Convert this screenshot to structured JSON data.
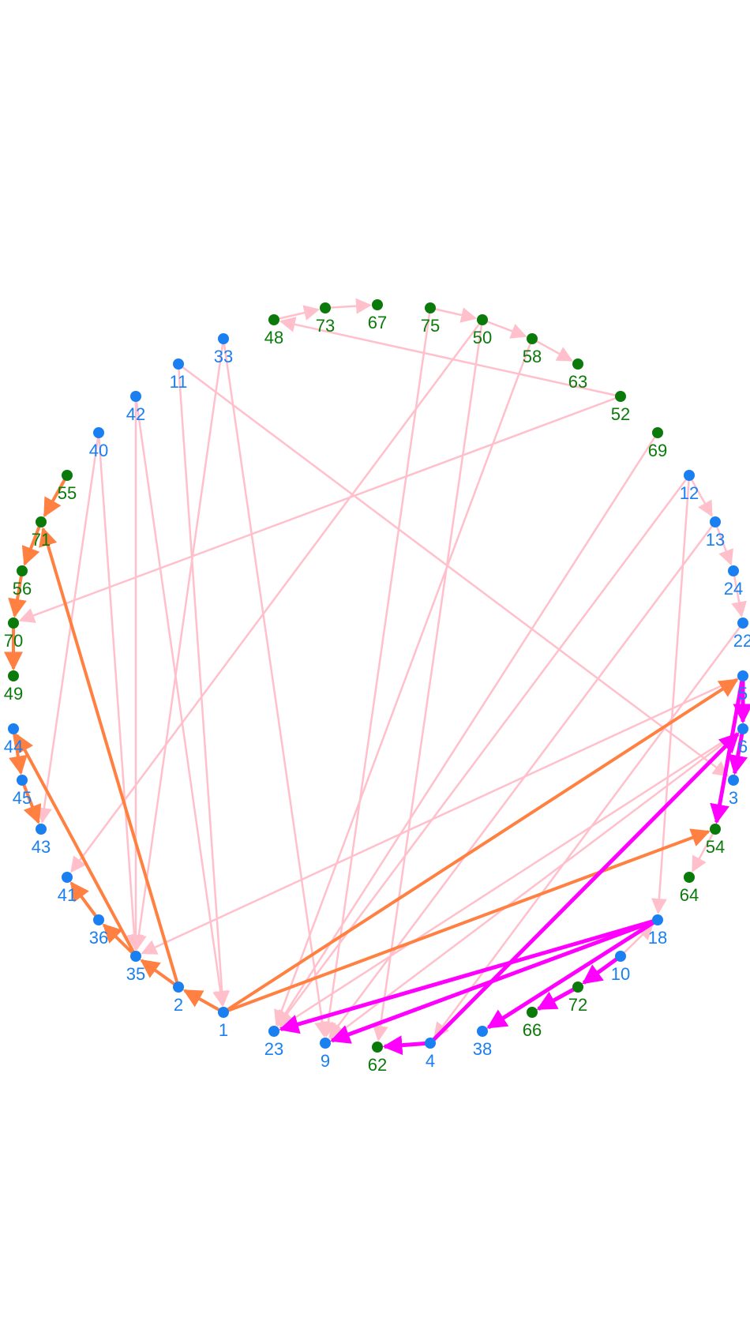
{
  "colors": {
    "blue_node": "#1a7ff0",
    "green_node": "#0a7a0a",
    "edge_pink": "#ffc0cb",
    "edge_orange": "#ff8040",
    "edge_magenta": "#ff00ff",
    "background": "#ffffff"
  },
  "nodes": [
    {
      "id": "1",
      "group": "blue"
    },
    {
      "id": "2",
      "group": "blue"
    },
    {
      "id": "35",
      "group": "blue"
    },
    {
      "id": "36",
      "group": "blue"
    },
    {
      "id": "41",
      "group": "blue"
    },
    {
      "id": "43",
      "group": "blue"
    },
    {
      "id": "45",
      "group": "blue"
    },
    {
      "id": "44",
      "group": "blue"
    },
    {
      "id": "49",
      "group": "green"
    },
    {
      "id": "70",
      "group": "green"
    },
    {
      "id": "56",
      "group": "green"
    },
    {
      "id": "71",
      "group": "green"
    },
    {
      "id": "55",
      "group": "green"
    },
    {
      "id": "40",
      "group": "blue"
    },
    {
      "id": "42",
      "group": "blue"
    },
    {
      "id": "11",
      "group": "blue"
    },
    {
      "id": "33",
      "group": "blue"
    },
    {
      "id": "48",
      "group": "green"
    },
    {
      "id": "73",
      "group": "green"
    },
    {
      "id": "67",
      "group": "green"
    },
    {
      "id": "75",
      "group": "green"
    },
    {
      "id": "50",
      "group": "green"
    },
    {
      "id": "58",
      "group": "green"
    },
    {
      "id": "63",
      "group": "green"
    },
    {
      "id": "52",
      "group": "green"
    },
    {
      "id": "69",
      "group": "green"
    },
    {
      "id": "12",
      "group": "blue"
    },
    {
      "id": "13",
      "group": "blue"
    },
    {
      "id": "24",
      "group": "blue"
    },
    {
      "id": "22",
      "group": "blue"
    },
    {
      "id": "5",
      "group": "blue"
    },
    {
      "id": "6",
      "group": "blue"
    },
    {
      "id": "3",
      "group": "blue"
    },
    {
      "id": "54",
      "group": "green"
    },
    {
      "id": "64",
      "group": "green"
    },
    {
      "id": "18",
      "group": "blue"
    },
    {
      "id": "10",
      "group": "blue"
    },
    {
      "id": "72",
      "group": "green"
    },
    {
      "id": "66",
      "group": "green"
    },
    {
      "id": "38",
      "group": "blue"
    },
    {
      "id": "4",
      "group": "blue"
    },
    {
      "id": "62",
      "group": "green"
    },
    {
      "id": "9",
      "group": "blue"
    },
    {
      "id": "23",
      "group": "blue"
    }
  ],
  "edges": [
    {
      "source": "48",
      "target": "73",
      "style": "pink"
    },
    {
      "source": "73",
      "target": "67",
      "style": "pink"
    },
    {
      "source": "75",
      "target": "50",
      "style": "pink"
    },
    {
      "source": "50",
      "target": "58",
      "style": "pink"
    },
    {
      "source": "58",
      "target": "63",
      "style": "pink"
    },
    {
      "source": "52",
      "target": "48",
      "style": "pink"
    },
    {
      "source": "52",
      "target": "70",
      "style": "pink"
    },
    {
      "source": "50",
      "target": "41",
      "style": "pink"
    },
    {
      "source": "50",
      "target": "62",
      "style": "pink"
    },
    {
      "source": "75",
      "target": "9",
      "style": "pink"
    },
    {
      "source": "58",
      "target": "23",
      "style": "pink"
    },
    {
      "source": "69",
      "target": "23",
      "style": "pink"
    },
    {
      "source": "11",
      "target": "3",
      "style": "pink"
    },
    {
      "source": "11",
      "target": "1",
      "style": "pink"
    },
    {
      "source": "33",
      "target": "35",
      "style": "pink"
    },
    {
      "source": "33",
      "target": "9",
      "style": "pink"
    },
    {
      "source": "42",
      "target": "35",
      "style": "pink"
    },
    {
      "source": "42",
      "target": "1",
      "style": "pink"
    },
    {
      "source": "40",
      "target": "35",
      "style": "pink"
    },
    {
      "source": "40",
      "target": "43",
      "style": "pink"
    },
    {
      "source": "12",
      "target": "13",
      "style": "pink"
    },
    {
      "source": "13",
      "target": "24",
      "style": "pink"
    },
    {
      "source": "24",
      "target": "22",
      "style": "pink"
    },
    {
      "source": "12",
      "target": "23",
      "style": "pink"
    },
    {
      "source": "12",
      "target": "18",
      "style": "pink"
    },
    {
      "source": "13",
      "target": "9",
      "style": "pink"
    },
    {
      "source": "22",
      "target": "4",
      "style": "pink"
    },
    {
      "source": "5",
      "target": "35",
      "style": "pink"
    },
    {
      "source": "6",
      "target": "23",
      "style": "pink"
    },
    {
      "source": "6",
      "target": "9",
      "style": "pink"
    },
    {
      "source": "54",
      "target": "64",
      "style": "pink"
    },
    {
      "source": "10",
      "target": "18",
      "style": "pink"
    },
    {
      "source": "18",
      "target": "23",
      "style": "magenta"
    },
    {
      "source": "18",
      "target": "9",
      "style": "magenta"
    },
    {
      "source": "18",
      "target": "38",
      "style": "magenta"
    },
    {
      "source": "10",
      "target": "72",
      "style": "magenta"
    },
    {
      "source": "72",
      "target": "66",
      "style": "magenta"
    },
    {
      "source": "4",
      "target": "62",
      "style": "magenta"
    },
    {
      "source": "4",
      "target": "6",
      "style": "magenta"
    },
    {
      "source": "5",
      "target": "6",
      "style": "magenta"
    },
    {
      "source": "6",
      "target": "3",
      "style": "magenta"
    },
    {
      "source": "5",
      "target": "54",
      "style": "magenta"
    },
    {
      "source": "1",
      "target": "2",
      "style": "orange"
    },
    {
      "source": "1",
      "target": "5",
      "style": "orange"
    },
    {
      "source": "1",
      "target": "54",
      "style": "orange"
    },
    {
      "source": "2",
      "target": "35",
      "style": "orange"
    },
    {
      "source": "2",
      "target": "71",
      "style": "orange"
    },
    {
      "source": "35",
      "target": "36",
      "style": "orange"
    },
    {
      "source": "36",
      "target": "41",
      "style": "orange"
    },
    {
      "source": "35",
      "target": "44",
      "style": "orange"
    },
    {
      "source": "44",
      "target": "45",
      "style": "orange"
    },
    {
      "source": "45",
      "target": "43",
      "style": "orange"
    },
    {
      "source": "55",
      "target": "71",
      "style": "orange"
    },
    {
      "source": "71",
      "target": "56",
      "style": "orange"
    },
    {
      "source": "56",
      "target": "70",
      "style": "orange"
    },
    {
      "source": "70",
      "target": "49",
      "style": "orange"
    }
  ]
}
